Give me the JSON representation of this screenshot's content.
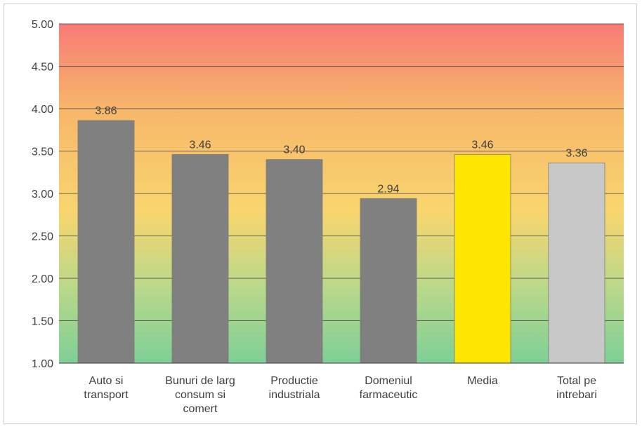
{
  "chart_data": {
    "type": "bar",
    "title": "",
    "xlabel": "",
    "ylabel": "",
    "ylim": [
      1.0,
      5.0
    ],
    "yticks": [
      "1.00",
      "1.50",
      "2.00",
      "2.50",
      "3.00",
      "3.50",
      "4.00",
      "4.50",
      "5.00"
    ],
    "grid": true,
    "legend": "none",
    "categories": [
      [
        "Auto si",
        "transport"
      ],
      [
        "Bunuri de larg",
        "consum si",
        "comert"
      ],
      [
        "Productie",
        "industriala"
      ],
      [
        "Domeniul",
        "farmaceutic"
      ],
      [
        "Media"
      ],
      [
        "Total pe",
        "intrebari"
      ]
    ],
    "values": [
      3.86,
      3.46,
      3.4,
      2.94,
      3.46,
      3.36
    ],
    "value_labels": [
      "3.86",
      "3.46",
      "3.40",
      "2.94",
      "3.46",
      "3.36"
    ],
    "colors": [
      "#808080",
      "#808080",
      "#808080",
      "#808080",
      "#ffe600",
      "#c8c8c8"
    ],
    "background_gradient": [
      "#f77b77",
      "#f7b66a",
      "#f9d56e",
      "#b9d88a",
      "#7ecf96"
    ]
  }
}
